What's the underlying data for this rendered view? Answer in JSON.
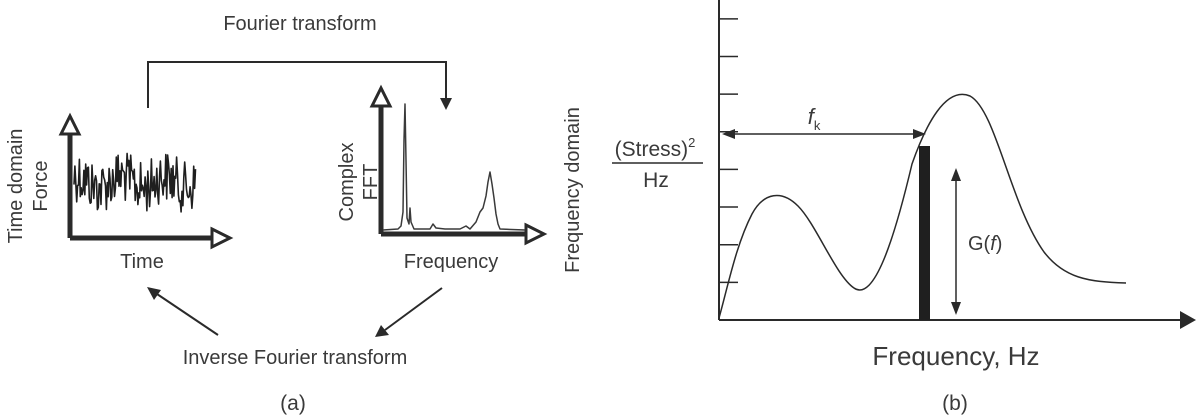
{
  "panel_a": {
    "top_label": "Fourier transform",
    "bottom_label": "Inverse Fourier transform",
    "left_plot": {
      "outer_label": "Time domain",
      "y_label": "Force",
      "x_label": "Time"
    },
    "right_plot": {
      "y_label_line1": "Complex",
      "y_label_line2": "FFT",
      "x_label": "Frequency",
      "outer_label": "Frequency domain"
    },
    "caption": "(a)"
  },
  "panel_b": {
    "ylabel_numerator": "(Stress)",
    "ylabel_exponent": "2",
    "ylabel_denominator": "Hz",
    "xlabel": "Frequency, Hz",
    "fk_symbol": "f",
    "fk_subscript": "k",
    "g_prefix": "G(",
    "g_var": "f",
    "g_suffix": ")",
    "caption": "(b)",
    "y_tick_count": 8
  },
  "colors": {
    "ink": "#2a2a2a",
    "signal": "#1f1f1f"
  }
}
